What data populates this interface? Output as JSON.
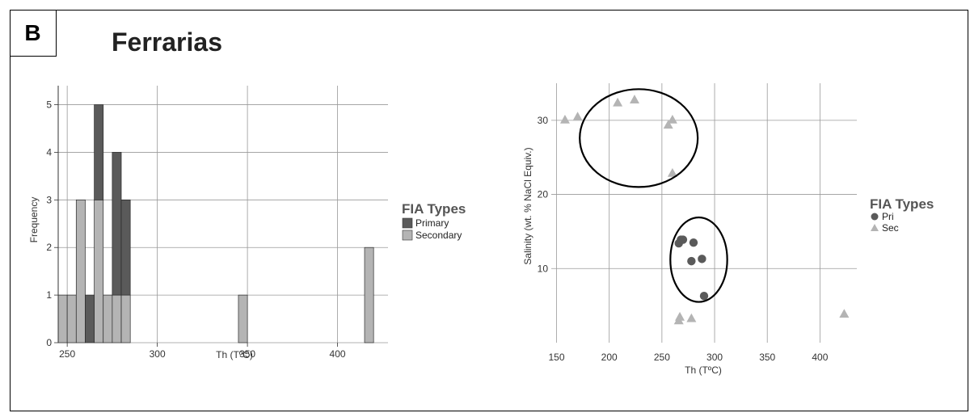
{
  "panel_label": "B",
  "title": "Ferrarias",
  "colors": {
    "primary": "#5a5a5a",
    "secondary": "#b4b4b4",
    "grid": "#999999"
  },
  "chart_data": [
    {
      "type": "bar",
      "stacked": true,
      "xlabel": "Th (TºC)",
      "ylabel": "Frequency",
      "xlim": [
        245,
        428
      ],
      "ylim": [
        0,
        5.4
      ],
      "x_ticks": [
        250,
        300,
        350,
        400
      ],
      "y_ticks": [
        0,
        1,
        2,
        3,
        4,
        5
      ],
      "bin_width": 5,
      "grid": true,
      "legend": {
        "title": "FIA Types",
        "position": "right"
      },
      "series": [
        {
          "name": "Primary",
          "color": "#5a5a5a",
          "bins": [
            {
              "x": 262.5,
              "value": 1
            },
            {
              "x": 267.5,
              "value": 2
            },
            {
              "x": 277.5,
              "value": 3
            },
            {
              "x": 282.5,
              "value": 2
            }
          ]
        },
        {
          "name": "Secondary",
          "color": "#b4b4b4",
          "bins": [
            {
              "x": 247.5,
              "value": 1
            },
            {
              "x": 252.5,
              "value": 1
            },
            {
              "x": 257.5,
              "value": 3
            },
            {
              "x": 267.5,
              "value": 3
            },
            {
              "x": 272.5,
              "value": 1
            },
            {
              "x": 277.5,
              "value": 1
            },
            {
              "x": 282.5,
              "value": 1
            },
            {
              "x": 347.5,
              "value": 1
            },
            {
              "x": 417.5,
              "value": 2
            }
          ]
        }
      ]
    },
    {
      "type": "scatter",
      "xlabel": "Th (TºC)",
      "ylabel": "Salinity (wt. % NaCl Equiv.)",
      "xlim": [
        145,
        435
      ],
      "ylim": [
        0,
        35
      ],
      "x_ticks": [
        150,
        200,
        250,
        300,
        350,
        400
      ],
      "y_ticks": [
        10,
        20,
        30
      ],
      "grid": true,
      "legend": {
        "title": "FIA Types",
        "position": "right"
      },
      "series": [
        {
          "name": "Pri",
          "marker": "circle",
          "color": "#5a5a5a",
          "points": [
            [
              266,
              13.4
            ],
            [
              268,
              13.9
            ],
            [
              270,
              13.9
            ],
            [
              280,
              13.5
            ],
            [
              278,
              11.0
            ],
            [
              288,
              11.3
            ],
            [
              290,
              6.3
            ]
          ]
        },
        {
          "name": "Sec",
          "marker": "triangle",
          "color": "#b4b4b4",
          "points": [
            [
              158,
              30.1
            ],
            [
              170,
              30.5
            ],
            [
              208,
              32.4
            ],
            [
              224,
              32.8
            ],
            [
              256,
              29.4
            ],
            [
              260,
              30.1
            ],
            [
              260,
              22.9
            ],
            [
              266,
              3.0
            ],
            [
              267,
              3.5
            ],
            [
              278,
              3.3
            ],
            [
              423,
              3.9
            ]
          ]
        }
      ],
      "annotations": [
        {
          "shape": "ellipse",
          "center": [
            228,
            27.6
          ],
          "radii": [
            56,
            6.6
          ]
        },
        {
          "shape": "ellipse",
          "center": [
            285,
            11.2
          ],
          "radii": [
            27,
            5.7
          ]
        }
      ]
    }
  ]
}
